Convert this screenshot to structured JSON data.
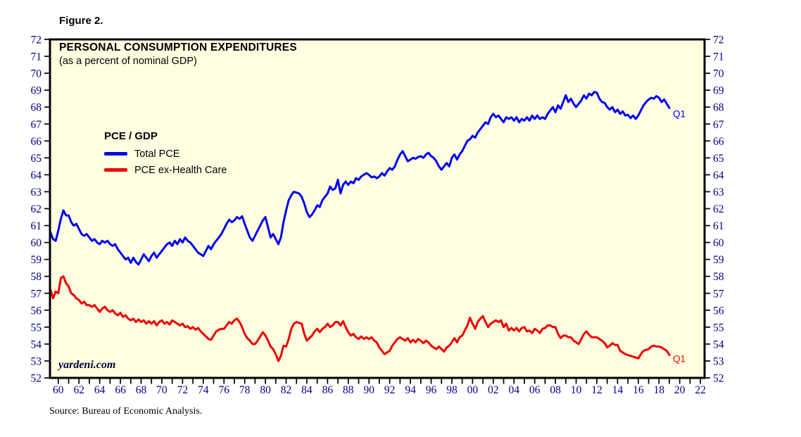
{
  "page": {
    "figure_label": "Figure 2."
  },
  "chart_data": {
    "type": "line",
    "title": "PERSONAL CONSUMPTION EXPENDITURES",
    "subtitle": "(as a percent of nominal GDP)",
    "legend_title": "PCE / GDP",
    "watermark": "yardeni.com",
    "source_note": "Source: Bureau of Economic Analysis.",
    "frequency": "quarterly",
    "x_start": 1959.25,
    "x_step": 0.25,
    "xlim": [
      1959.2,
      2022.4
    ],
    "ylim": [
      52,
      72
    ],
    "y_tick_interval": 1,
    "x_tick_interval": 1,
    "x_label_interval": 2,
    "y_axis_sides": "both",
    "grid": false,
    "plot_bg": "#fffee1",
    "border_color": "#000000",
    "axis_label_color": "#00008b",
    "x_tick_labels": [
      "60",
      "62",
      "64",
      "66",
      "68",
      "70",
      "72",
      "74",
      "76",
      "78",
      "80",
      "82",
      "84",
      "86",
      "88",
      "90",
      "92",
      "94",
      "96",
      "98",
      "00",
      "02",
      "04",
      "06",
      "08",
      "10",
      "12",
      "14",
      "16",
      "18",
      "20",
      "22"
    ],
    "y_tick_labels": [
      52,
      53,
      54,
      55,
      56,
      57,
      58,
      59,
      60,
      61,
      62,
      63,
      64,
      65,
      66,
      67,
      68,
      69,
      70,
      71,
      72
    ],
    "series": [
      {
        "name": "Total PCE",
        "color": "#0000ee",
        "end_label": "Q1",
        "label_dx": 5,
        "label_dy": 13,
        "values": [
          60.6,
          60.2,
          60.1,
          60.7,
          61.4,
          61.9,
          61.6,
          61.6,
          61.2,
          61.0,
          61.1,
          60.8,
          60.5,
          60.4,
          60.5,
          60.3,
          60.1,
          60.2,
          60.0,
          59.9,
          60.1,
          60.0,
          60.1,
          59.9,
          59.8,
          59.9,
          59.6,
          59.4,
          59.2,
          59.0,
          59.1,
          58.8,
          59.1,
          58.85,
          58.7,
          59.0,
          59.3,
          59.1,
          58.9,
          59.2,
          59.4,
          59.1,
          59.3,
          59.5,
          59.7,
          59.9,
          60.0,
          59.8,
          60.1,
          59.9,
          60.2,
          60.0,
          60.3,
          60.1,
          60.0,
          59.8,
          59.6,
          59.4,
          59.3,
          59.2,
          59.5,
          59.8,
          59.6,
          59.9,
          60.1,
          60.3,
          60.5,
          60.8,
          61.1,
          61.35,
          61.2,
          61.3,
          61.5,
          61.4,
          61.55,
          61.1,
          60.7,
          60.3,
          60.1,
          60.4,
          60.7,
          61.0,
          61.3,
          61.5,
          60.9,
          60.3,
          60.5,
          60.2,
          59.9,
          60.3,
          61.2,
          61.9,
          62.5,
          62.8,
          63.0,
          62.95,
          62.9,
          62.7,
          62.3,
          61.8,
          61.5,
          61.65,
          61.9,
          62.2,
          62.1,
          62.5,
          62.7,
          62.9,
          63.3,
          63.1,
          63.2,
          63.7,
          62.9,
          63.4,
          63.6,
          63.4,
          63.6,
          63.5,
          63.8,
          63.7,
          63.9,
          64.0,
          64.1,
          64.0,
          63.85,
          63.9,
          63.8,
          63.9,
          64.1,
          63.95,
          64.2,
          64.4,
          64.3,
          64.5,
          64.9,
          65.2,
          65.4,
          65.1,
          64.8,
          64.9,
          65.0,
          64.95,
          65.05,
          65.1,
          65.0,
          65.2,
          65.3,
          65.1,
          65.0,
          64.8,
          64.5,
          64.3,
          64.5,
          64.7,
          64.5,
          65.0,
          65.2,
          64.9,
          65.2,
          65.4,
          65.7,
          66.0,
          66.1,
          66.3,
          66.2,
          66.5,
          66.7,
          66.9,
          67.1,
          67.0,
          67.4,
          67.6,
          67.4,
          67.5,
          67.3,
          67.1,
          67.4,
          67.3,
          67.4,
          67.2,
          67.4,
          67.1,
          67.3,
          67.2,
          67.4,
          67.2,
          67.5,
          67.3,
          67.5,
          67.3,
          67.4,
          67.3,
          67.6,
          67.8,
          68.0,
          67.7,
          68.1,
          67.9,
          68.3,
          68.7,
          68.3,
          68.5,
          68.2,
          68.0,
          68.2,
          68.4,
          68.7,
          68.5,
          68.8,
          68.7,
          68.9,
          68.85,
          68.5,
          68.3,
          68.25,
          68.0,
          67.85,
          68.0,
          67.7,
          67.85,
          67.6,
          67.75,
          67.5,
          67.55,
          67.35,
          67.5,
          67.3,
          67.5,
          67.8,
          68.1,
          68.3,
          68.45,
          68.55,
          68.5,
          68.65,
          68.55,
          68.3,
          68.45,
          68.2,
          67.95
        ]
      },
      {
        "name": "PCE ex-Health Care",
        "color": "#ee0000",
        "end_label": "Q1",
        "label_dx": 5,
        "label_dy": 10,
        "values": [
          57.2,
          56.7,
          57.1,
          57.0,
          57.9,
          58.0,
          57.6,
          57.4,
          57.0,
          56.9,
          56.7,
          56.6,
          56.4,
          56.5,
          56.3,
          56.3,
          56.2,
          56.3,
          56.1,
          55.9,
          56.1,
          56.2,
          56.0,
          55.9,
          56.0,
          55.8,
          55.7,
          55.85,
          55.6,
          55.7,
          55.5,
          55.4,
          55.5,
          55.3,
          55.45,
          55.3,
          55.4,
          55.2,
          55.35,
          55.2,
          55.35,
          55.1,
          55.3,
          55.4,
          55.2,
          55.3,
          55.15,
          55.4,
          55.3,
          55.2,
          55.1,
          55.2,
          55.0,
          55.05,
          54.9,
          55.0,
          54.85,
          54.95,
          54.75,
          54.6,
          54.45,
          54.3,
          54.25,
          54.5,
          54.75,
          54.85,
          54.9,
          54.9,
          55.1,
          55.3,
          55.2,
          55.4,
          55.5,
          55.3,
          55.0,
          54.6,
          54.35,
          54.2,
          54.0,
          54.0,
          54.2,
          54.45,
          54.7,
          54.5,
          54.2,
          53.85,
          53.7,
          53.4,
          53.0,
          53.3,
          53.9,
          53.85,
          54.3,
          54.9,
          55.2,
          55.3,
          55.25,
          55.2,
          54.6,
          54.2,
          54.35,
          54.5,
          54.75,
          54.9,
          54.7,
          54.9,
          55.0,
          55.2,
          55.0,
          55.1,
          55.3,
          55.3,
          55.1,
          55.35,
          55.0,
          54.7,
          54.5,
          54.6,
          54.4,
          54.3,
          54.45,
          54.3,
          54.4,
          54.3,
          54.4,
          54.2,
          54.1,
          53.8,
          53.6,
          53.4,
          53.5,
          53.6,
          53.9,
          54.1,
          54.3,
          54.4,
          54.3,
          54.2,
          54.35,
          54.1,
          54.25,
          54.1,
          54.3,
          54.2,
          54.05,
          54.2,
          54.1,
          53.9,
          53.8,
          53.7,
          53.85,
          53.7,
          53.55,
          53.8,
          53.9,
          54.1,
          54.35,
          54.1,
          54.4,
          54.5,
          54.8,
          55.1,
          55.55,
          55.2,
          54.9,
          55.3,
          55.5,
          55.65,
          55.3,
          55.0,
          55.2,
          55.3,
          55.4,
          55.3,
          55.4,
          55.0,
          55.2,
          54.8,
          54.95,
          54.8,
          54.95,
          54.75,
          54.95,
          55.0,
          54.75,
          54.8,
          54.65,
          54.9,
          54.8,
          54.65,
          54.9,
          54.95,
          55.1,
          55.1,
          55.0,
          55.0,
          54.6,
          54.35,
          54.5,
          54.5,
          54.4,
          54.4,
          54.2,
          54.1,
          54.0,
          54.3,
          54.6,
          54.75,
          54.55,
          54.4,
          54.4,
          54.4,
          54.3,
          54.2,
          54.05,
          53.8,
          53.9,
          54.05,
          53.95,
          53.95,
          53.6,
          53.5,
          53.4,
          53.35,
          53.3,
          53.25,
          53.2,
          53.15,
          53.4,
          53.6,
          53.65,
          53.7,
          53.85,
          53.9,
          53.85,
          53.85,
          53.8,
          53.7,
          53.6,
          53.35
        ]
      }
    ]
  }
}
